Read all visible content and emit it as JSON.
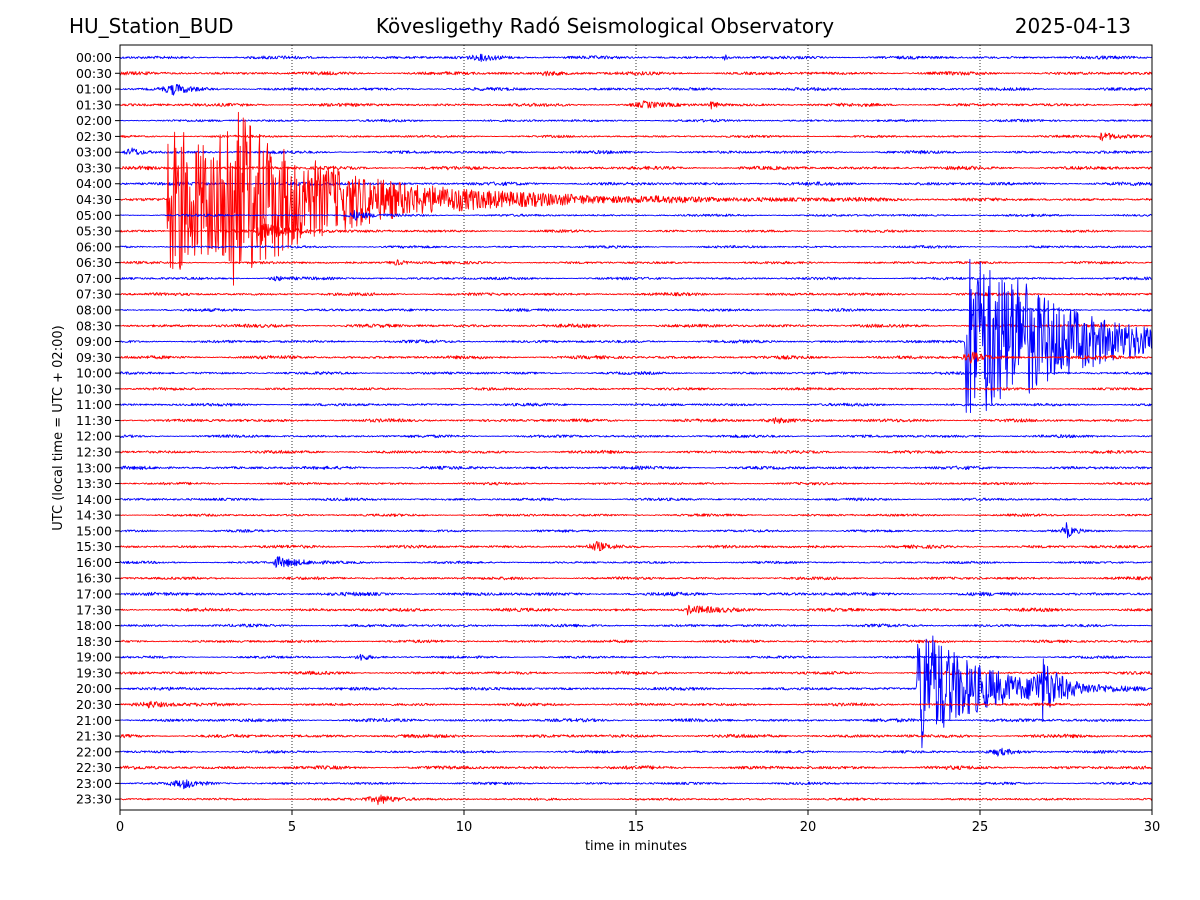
{
  "header": {
    "station": "HU_Station_BUD",
    "observatory": "Kövesligethy Radó Seismological Observatory",
    "date": "2025-04-13"
  },
  "chart_data": {
    "type": "line",
    "title": "Kövesligethy Radó Seismological Observatory",
    "xlabel": "time in minutes",
    "ylabel": "UTC (local time = UTC + 02:00)",
    "xlim": [
      0,
      30
    ],
    "xticks": [
      0,
      5,
      10,
      15,
      20,
      25,
      30
    ],
    "grid": "vertical dotted lines at each 5-minute tick",
    "trace_colors": [
      "#0000ff",
      "#ff0000"
    ],
    "traces": [
      {
        "label": "00:00",
        "color": "#0000ff",
        "events": [
          {
            "t": 10.5,
            "amp": 3,
            "dur": 1.2
          },
          {
            "t": 17.6,
            "amp": 4,
            "dur": 0.2
          }
        ]
      },
      {
        "label": "00:30",
        "color": "#ff0000",
        "events": [
          {
            "t": 12.3,
            "amp": 2,
            "dur": 1.5
          }
        ]
      },
      {
        "label": "01:00",
        "color": "#0000ff",
        "events": [
          {
            "t": 1.5,
            "amp": 5,
            "dur": 1.0
          }
        ]
      },
      {
        "label": "01:30",
        "color": "#ff0000",
        "events": [
          {
            "t": 15.2,
            "amp": 3,
            "dur": 1.0
          },
          {
            "t": 17.2,
            "amp": 5,
            "dur": 0.3
          }
        ]
      },
      {
        "label": "02:00",
        "color": "#0000ff",
        "events": []
      },
      {
        "label": "02:30",
        "color": "#ff0000",
        "events": [
          {
            "t": 28.5,
            "amp": 4,
            "dur": 1.8
          }
        ]
      },
      {
        "label": "03:00",
        "color": "#0000ff",
        "events": [
          {
            "t": 0.3,
            "amp": 5,
            "dur": 0.6
          }
        ]
      },
      {
        "label": "03:30",
        "color": "#ff0000",
        "events": []
      },
      {
        "label": "04:00",
        "color": "#0000ff",
        "events": []
      },
      {
        "label": "04:30",
        "color": "#ff0000",
        "events": [
          {
            "t": 1.4,
            "amp": 75,
            "dur": 9.0
          },
          {
            "t": 2.95,
            "amp": 55,
            "dur": 4.0
          }
        ]
      },
      {
        "label": "05:00",
        "color": "#0000ff",
        "events": [
          {
            "t": 6.8,
            "amp": 5,
            "dur": 0.8
          }
        ]
      },
      {
        "label": "05:30",
        "color": "#ff0000",
        "events": [
          {
            "t": 4.0,
            "amp": 8,
            "dur": 2.0
          }
        ]
      },
      {
        "label": "06:00",
        "color": "#0000ff",
        "events": []
      },
      {
        "label": "06:30",
        "color": "#ff0000",
        "events": [
          {
            "t": 8.0,
            "amp": 3,
            "dur": 0.8
          }
        ]
      },
      {
        "label": "07:00",
        "color": "#0000ff",
        "events": [
          {
            "t": 4.5,
            "amp": 3,
            "dur": 0.5
          }
        ]
      },
      {
        "label": "07:30",
        "color": "#ff0000",
        "events": []
      },
      {
        "label": "08:00",
        "color": "#0000ff",
        "events": []
      },
      {
        "label": "08:30",
        "color": "#ff0000",
        "events": []
      },
      {
        "label": "09:00",
        "color": "#0000ff",
        "events": [
          {
            "t": 24.6,
            "amp": 95,
            "dur": 6.0
          },
          {
            "t": 26.1,
            "amp": 14,
            "dur": 1.0
          }
        ]
      },
      {
        "label": "09:30",
        "color": "#ff0000",
        "events": [
          {
            "t": 24.7,
            "amp": 7,
            "dur": 0.6
          }
        ]
      },
      {
        "label": "10:00",
        "color": "#0000ff",
        "events": []
      },
      {
        "label": "10:30",
        "color": "#ff0000",
        "events": []
      },
      {
        "label": "11:00",
        "color": "#0000ff",
        "events": []
      },
      {
        "label": "11:30",
        "color": "#ff0000",
        "events": [
          {
            "t": 19.0,
            "amp": 3,
            "dur": 1.0
          }
        ]
      },
      {
        "label": "12:00",
        "color": "#0000ff",
        "events": []
      },
      {
        "label": "12:30",
        "color": "#ff0000",
        "events": []
      },
      {
        "label": "13:00",
        "color": "#0000ff",
        "events": []
      },
      {
        "label": "13:30",
        "color": "#ff0000",
        "events": []
      },
      {
        "label": "14:00",
        "color": "#0000ff",
        "events": []
      },
      {
        "label": "14:30",
        "color": "#ff0000",
        "events": []
      },
      {
        "label": "15:00",
        "color": "#0000ff",
        "events": [
          {
            "t": 27.5,
            "amp": 8,
            "dur": 0.4
          }
        ]
      },
      {
        "label": "15:30",
        "color": "#ff0000",
        "events": [
          {
            "t": 13.8,
            "amp": 5,
            "dur": 0.6
          }
        ]
      },
      {
        "label": "16:00",
        "color": "#0000ff",
        "events": [
          {
            "t": 4.5,
            "amp": 6,
            "dur": 1.6
          }
        ]
      },
      {
        "label": "16:30",
        "color": "#ff0000",
        "events": []
      },
      {
        "label": "17:00",
        "color": "#0000ff",
        "events": []
      },
      {
        "label": "17:30",
        "color": "#ff0000",
        "events": [
          {
            "t": 16.5,
            "amp": 4,
            "dur": 1.5
          }
        ]
      },
      {
        "label": "18:00",
        "color": "#0000ff",
        "events": []
      },
      {
        "label": "18:30",
        "color": "#ff0000",
        "events": []
      },
      {
        "label": "19:00",
        "color": "#0000ff",
        "events": [
          {
            "t": 7.0,
            "amp": 4,
            "dur": 0.5
          }
        ]
      },
      {
        "label": "19:30",
        "color": "#ff0000",
        "events": []
      },
      {
        "label": "20:00",
        "color": "#0000ff",
        "events": [
          {
            "t": 23.2,
            "amp": 70,
            "dur": 3.5
          },
          {
            "t": 26.8,
            "amp": 28,
            "dur": 1.0
          }
        ]
      },
      {
        "label": "20:30",
        "color": "#ff0000",
        "events": [
          {
            "t": 0.8,
            "amp": 4,
            "dur": 1.2
          }
        ]
      },
      {
        "label": "21:00",
        "color": "#0000ff",
        "events": []
      },
      {
        "label": "21:30",
        "color": "#ff0000",
        "events": []
      },
      {
        "label": "22:00",
        "color": "#0000ff",
        "events": [
          {
            "t": 25.5,
            "amp": 4,
            "dur": 1.0
          }
        ]
      },
      {
        "label": "22:30",
        "color": "#ff0000",
        "events": []
      },
      {
        "label": "23:00",
        "color": "#0000ff",
        "events": [
          {
            "t": 1.8,
            "amp": 5,
            "dur": 1.0
          }
        ]
      },
      {
        "label": "23:30",
        "color": "#ff0000",
        "events": [
          {
            "t": 7.5,
            "amp": 5,
            "dur": 1.2
          }
        ]
      }
    ]
  }
}
